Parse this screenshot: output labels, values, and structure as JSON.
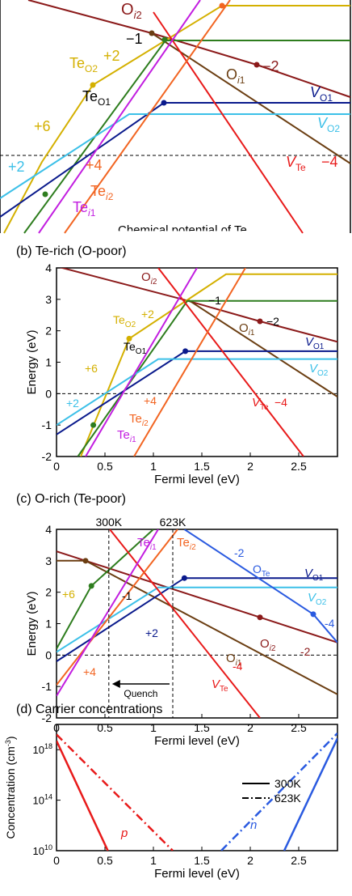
{
  "panels": {
    "a": {
      "axis_label_cut": "Chemical potential of Te"
    },
    "b": {
      "title": "(b) Te-rich (O-poor)"
    },
    "c": {
      "title": "(c) O-rich (Te-poor)"
    },
    "d": {
      "title": "(d) Carrier concentrations"
    }
  },
  "chart_data": [
    {
      "panel": "a",
      "type": "line",
      "note_text": "",
      "series": [
        {
          "name": "O_i2",
          "color": "#8b1a1a"
        },
        {
          "name": "O_i1",
          "color": "#6b3e12"
        },
        {
          "name": "Te_O2",
          "color": "#d4b000"
        },
        {
          "name": "Te_O1",
          "color": "#2e7d1e"
        },
        {
          "name": "V_O1",
          "color": "#0a1a8c"
        },
        {
          "name": "V_O2",
          "color": "#3cc0e8"
        },
        {
          "name": "V_Te",
          "color": "#e81a1a"
        },
        {
          "name": "Te_i2",
          "color": "#f26522"
        },
        {
          "name": "Te_i1",
          "color": "#c21ee0"
        }
      ]
    },
    {
      "panel": "b",
      "type": "line",
      "xlabel": "Fermi level (eV)",
      "ylabel": "Energy (eV)",
      "xlim": [
        0,
        2.9
      ],
      "ylim": [
        -2,
        4
      ],
      "xticks": [
        0,
        0.5,
        1,
        1.5,
        2,
        2.5
      ],
      "yticks": [
        -2,
        -1,
        0,
        1,
        2,
        3,
        4
      ],
      "series": [
        {
          "name": "O_i2",
          "color": "#8b1a1a",
          "points": [
            [
              0,
              4.05
            ],
            [
              1.3,
              3.0
            ],
            [
              2.1,
              2.3
            ],
            [
              2.9,
              1.65
            ]
          ],
          "marker": [
            2.1,
            2.3
          ]
        },
        {
          "name": "O_i1",
          "color": "#6b3e12",
          "points": [
            [
              1.35,
              3.0
            ],
            [
              2.9,
              -0.1
            ]
          ]
        },
        {
          "name": "Te_O2",
          "color": "#d4b000",
          "points": [
            [
              0.25,
              -2.0
            ],
            [
              0.75,
              1.75
            ],
            [
              1.75,
              3.8
            ],
            [
              2.9,
              3.8
            ]
          ],
          "marker": [
            0.75,
            1.75
          ]
        },
        {
          "name": "Te_O1",
          "color": "#2e7d1e",
          "points": [
            [
              0.22,
              -2.0
            ],
            [
              1.35,
              2.95
            ],
            [
              2.9,
              2.95
            ]
          ],
          "marker": [
            0.38,
            -1.0
          ]
        },
        {
          "name": "V_O1",
          "color": "#0a1a8c",
          "points": [
            [
              0,
              -1.3
            ],
            [
              1.33,
              1.35
            ],
            [
              2.9,
              1.35
            ]
          ],
          "marker": [
            1.33,
            1.35
          ]
        },
        {
          "name": "V_O2",
          "color": "#3cc0e8",
          "points": [
            [
              0,
              -1.0
            ],
            [
              1.05,
              1.1
            ],
            [
              2.9,
              1.1
            ]
          ]
        },
        {
          "name": "V_Te",
          "color": "#e81a1a",
          "points": [
            [
              1.05,
              4.0
            ],
            [
              2.55,
              -2.0
            ]
          ]
        },
        {
          "name": "Te_i2",
          "color": "#f26522",
          "points": [
            [
              0.8,
              -2.0
            ],
            [
              1.95,
              4.0
            ]
          ]
        },
        {
          "name": "Te_i1",
          "color": "#c21ee0",
          "points": [
            [
              0.3,
              -2.0
            ],
            [
              1.45,
              4.0
            ]
          ]
        }
      ]
    },
    {
      "panel": "c",
      "type": "line",
      "xlabel": "Fermi level (eV)",
      "ylabel": "Energy (eV)",
      "xlim": [
        0,
        2.9
      ],
      "ylim": [
        -2,
        4
      ],
      "xticks": [
        0,
        0.5,
        1,
        1.5,
        2,
        2.5
      ],
      "yticks": [
        -2,
        -1,
        0,
        1,
        2,
        3,
        4
      ],
      "vlines": [
        {
          "x": 0.54,
          "label": "300K"
        },
        {
          "x": 1.2,
          "label": "623K"
        }
      ],
      "arrow_label": "Quench",
      "series": [
        {
          "name": "O_i2",
          "color": "#8b1a1a",
          "points": [
            [
              0,
              3.3
            ],
            [
              0.3,
              3.0
            ],
            [
              1.2,
              2.1
            ],
            [
              2.1,
              1.2
            ],
            [
              2.9,
              0.4
            ]
          ],
          "marker": [
            2.1,
            1.2
          ]
        },
        {
          "name": "O_i1",
          "color": "#6b3e12",
          "points": [
            [
              0,
              3.0
            ],
            [
              0.3,
              3.0
            ],
            [
              2.9,
              -1.25
            ]
          ],
          "marker": [
            0.3,
            3.0
          ]
        },
        {
          "name": "Te_O1",
          "color": "#2e7d1e",
          "points": [
            [
              0,
              0.2
            ],
            [
              0.36,
              2.2
            ],
            [
              1.0,
              4.0
            ]
          ],
          "marker": [
            0.36,
            2.2
          ]
        },
        {
          "name": "V_O1",
          "color": "#0a1a8c",
          "points": [
            [
              0,
              -0.2
            ],
            [
              1.32,
              2.45
            ],
            [
              2.9,
              2.45
            ]
          ],
          "marker": [
            1.32,
            2.45
          ]
        },
        {
          "name": "V_O2",
          "color": "#3cc0e8",
          "points": [
            [
              0,
              0.1
            ],
            [
              1.05,
              2.15
            ],
            [
              2.9,
              2.15
            ]
          ]
        },
        {
          "name": "O_Te",
          "color": "#2a5ae0",
          "points": [
            [
              1.32,
              4.0
            ],
            [
              2.65,
              1.3
            ],
            [
              2.9,
              0.4
            ]
          ],
          "marker": [
            2.65,
            1.3
          ]
        },
        {
          "name": "V_Te",
          "color": "#e81a1a",
          "points": [
            [
              0.55,
              4.0
            ],
            [
              2.1,
              -2.0
            ]
          ]
        },
        {
          "name": "Te_i2",
          "color": "#f26522",
          "points": [
            [
              0,
              -0.95
            ],
            [
              1.25,
              4.0
            ]
          ]
        },
        {
          "name": "Te_i1",
          "color": "#c21ee0",
          "points": [
            [
              0,
              -1.3
            ],
            [
              1.05,
              4.0
            ]
          ]
        }
      ]
    },
    {
      "panel": "d",
      "type": "line",
      "xlabel": "Fermi level (eV)",
      "ylabel": "Concentration (cm-3)",
      "xlim": [
        0,
        2.9
      ],
      "ylim_log10": [
        10,
        20
      ],
      "xticks": [
        0,
        0.5,
        1,
        1.5,
        2,
        2.5
      ],
      "yticks": [
        "10^10",
        "10^14",
        "10^18"
      ],
      "legend": [
        "300K",
        "623K"
      ],
      "series": [
        {
          "name": "p 300K",
          "color": "#e81a1a",
          "style": "solid",
          "points": [
            [
              0,
              18.7
            ],
            [
              0.53,
              10.0
            ]
          ]
        },
        {
          "name": "p 623K",
          "color": "#e81a1a",
          "style": "dashdot",
          "points": [
            [
              0,
              19.2
            ],
            [
              1.2,
              10.0
            ]
          ]
        },
        {
          "name": "n 300K",
          "color": "#2a5ae0",
          "style": "solid",
          "points": [
            [
              2.35,
              10.0
            ],
            [
              2.9,
              18.9
            ]
          ]
        },
        {
          "name": "n 623K",
          "color": "#2a5ae0",
          "style": "dashdot",
          "points": [
            [
              1.7,
              10.0
            ],
            [
              2.9,
              19.3
            ]
          ]
        }
      ]
    }
  ]
}
